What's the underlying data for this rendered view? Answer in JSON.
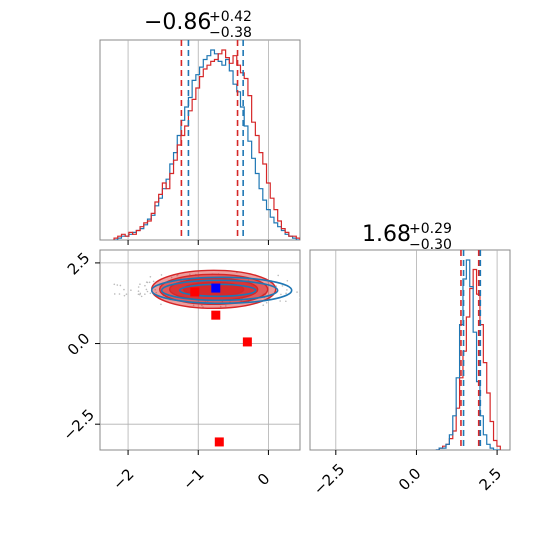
{
  "chart_data": {
    "type": "corner",
    "colors": {
      "red": "#d62728",
      "blue": "#1f77b4",
      "marker_red": "#ff0000",
      "marker_blue": "#0000ff",
      "grid": "#b0b0b0"
    },
    "titles": [
      {
        "value": "−0.86",
        "upper": "+0.42",
        "lower": "−0.38"
      },
      {
        "value": "1.68",
        "upper": "+0.29",
        "lower": "−0.30"
      }
    ],
    "param1": {
      "range": [
        -2.4,
        0.45
      ],
      "ticks": [
        {
          "v": -2,
          "label": "−2"
        },
        {
          "v": -1,
          "label": "−1"
        },
        {
          "v": 0,
          "label": "0"
        }
      ],
      "quantiles_red": [
        -1.24,
        -0.44
      ],
      "quantiles_blue": [
        -1.14,
        -0.36
      ],
      "hist_red": [
        0.01,
        0.02,
        0.03,
        0.02,
        0.04,
        0.03,
        0.05,
        0.07,
        0.09,
        0.1,
        0.14,
        0.2,
        0.24,
        0.3,
        0.27,
        0.35,
        0.42,
        0.5,
        0.55,
        0.6,
        0.68,
        0.74,
        0.8,
        0.86,
        0.9,
        0.92,
        0.94,
        0.95,
        0.98,
        1.0,
        0.96,
        0.93,
        0.97,
        0.92,
        0.88,
        0.85,
        0.76,
        0.62,
        0.55,
        0.46,
        0.4,
        0.3,
        0.22,
        0.16,
        0.1,
        0.06,
        0.04,
        0.02,
        0.02,
        0.01
      ],
      "hist_blue": [
        0.0,
        0.01,
        0.02,
        0.02,
        0.03,
        0.04,
        0.05,
        0.06,
        0.08,
        0.11,
        0.13,
        0.18,
        0.22,
        0.27,
        0.32,
        0.4,
        0.46,
        0.55,
        0.63,
        0.7,
        0.75,
        0.84,
        0.87,
        0.91,
        0.95,
        0.97,
        1.0,
        0.98,
        0.94,
        0.92,
        0.95,
        0.89,
        0.82,
        0.78,
        0.7,
        0.6,
        0.52,
        0.43,
        0.35,
        0.27,
        0.21,
        0.16,
        0.12,
        0.09,
        0.07,
        0.05,
        0.03,
        0.02,
        0.01,
        0.0
      ]
    },
    "param2": {
      "range": [
        -3.3,
        2.9
      ],
      "ticks": [
        {
          "v": -2.5,
          "label": "−2.5"
        },
        {
          "v": 0.0,
          "label": "0.0"
        },
        {
          "v": 2.5,
          "label": "2.5"
        }
      ],
      "quantiles_red": [
        1.38,
        1.93
      ],
      "quantiles_blue": [
        1.46,
        1.98
      ],
      "hist_red": [
        0.0,
        0.01,
        0.02,
        0.03,
        0.06,
        0.1,
        0.22,
        0.38,
        0.52,
        0.7,
        0.85,
        0.95,
        0.82,
        0.66,
        0.46,
        0.3,
        0.15,
        0.05,
        0.02
      ],
      "hist_blue": [
        0.0,
        0.01,
        0.01,
        0.03,
        0.08,
        0.18,
        0.38,
        0.66,
        0.9,
        1.0,
        0.86,
        0.62,
        0.36,
        0.18,
        0.08,
        0.03,
        0.01,
        0.0,
        0.0
      ],
      "hist_range": [
        0.6,
        2.6
      ]
    },
    "joint": {
      "center": [
        -0.78,
        1.68
      ],
      "red_markers": [
        [
          -1.05,
          1.6
        ],
        [
          -0.75,
          0.88
        ],
        [
          -0.3,
          0.05
        ],
        [
          -0.7,
          -3.05
        ]
      ],
      "blue_markers": [
        [
          -0.75,
          1.72
        ]
      ]
    }
  }
}
